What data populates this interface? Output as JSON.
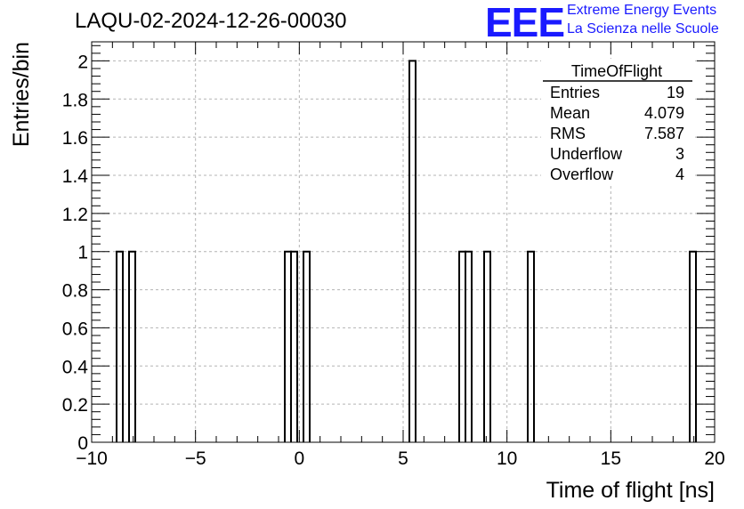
{
  "title": "LAQU-02-2024-12-26-00030",
  "logo": {
    "mark": "EEE",
    "line1": "Extreme Energy Events",
    "line2": "La Scienza nelle Scuole",
    "color": "#1a1aff"
  },
  "stats_box": {
    "name": "TimeOfFlight",
    "rows": [
      {
        "label": "Entries",
        "value": "19"
      },
      {
        "label": "Mean",
        "value": "4.079"
      },
      {
        "label": "RMS",
        "value": "7.587"
      },
      {
        "label": "Underflow",
        "value": "3"
      },
      {
        "label": "Overflow",
        "value": "4"
      }
    ]
  },
  "chart_data": {
    "type": "bar",
    "histogram": true,
    "xlabel": "Time of flight [ns]",
    "ylabel": "Entries/bin",
    "xlim": [
      -10,
      20
    ],
    "ylim": [
      0,
      2.1
    ],
    "grid": true,
    "x_ticks": [
      "−10",
      "−5",
      "0",
      "5",
      "10",
      "15",
      "20"
    ],
    "y_ticks": [
      "0",
      "0.2",
      "0.4",
      "0.6",
      "0.8",
      "1",
      "1.2",
      "1.4",
      "1.6",
      "1.8",
      "2"
    ],
    "bin_width": 0.3,
    "bins": [
      {
        "x_low": -8.8,
        "value": 1
      },
      {
        "x_low": -8.2,
        "value": 1
      },
      {
        "x_low": -0.7,
        "value": 1
      },
      {
        "x_low": -0.4,
        "value": 1
      },
      {
        "x_low": 0.2,
        "value": 1
      },
      {
        "x_low": 5.3,
        "value": 2
      },
      {
        "x_low": 7.7,
        "value": 1
      },
      {
        "x_low": 8.0,
        "value": 1
      },
      {
        "x_low": 8.9,
        "value": 1
      },
      {
        "x_low": 11.0,
        "value": 1
      },
      {
        "x_low": 18.8,
        "value": 1
      }
    ]
  }
}
